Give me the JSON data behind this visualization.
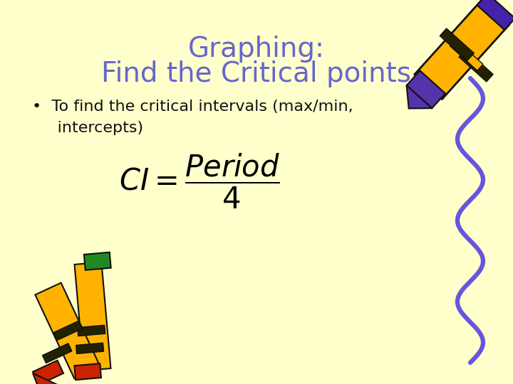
{
  "background_color": "#FFFFCC",
  "title_line1": "Graphing:",
  "title_line2": "Find the Critical points",
  "title_color": "#6666CC",
  "title_fontsize": 28,
  "bullet_text": "To find the critical intervals (max/min,\n  intercepts)",
  "bullet_fontsize": 16,
  "formula_fontsize": 30,
  "formula_color": "#000000",
  "text_color": "#111111",
  "wave_color": "#6655DD",
  "wave_linewidth": 4.5
}
